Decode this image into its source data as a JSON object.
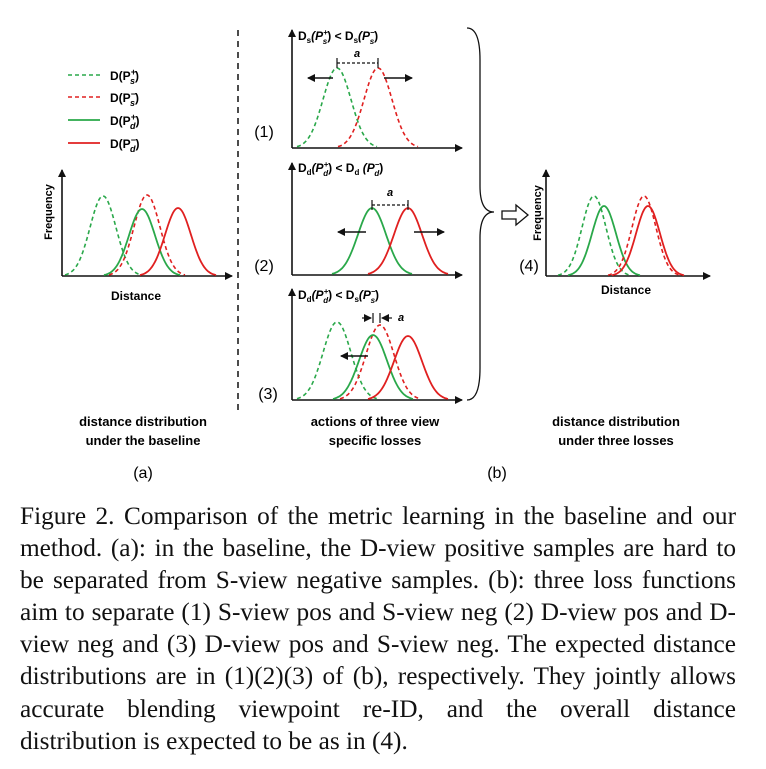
{
  "legend": [
    {
      "text": "D(P",
      "sup": "+",
      "sub": "s",
      "close": ")",
      "color": "#2aa84a",
      "dash": true
    },
    {
      "text": "D(P",
      "sup": "−",
      "sub": "s",
      "close": ")",
      "color": "#e02020",
      "dash": true
    },
    {
      "text": "D(P",
      "sup": "+",
      "sub": "d",
      "close": ")",
      "color": "#2aa84a",
      "dash": false
    },
    {
      "text": "D(P",
      "sup": "−",
      "sub": "d",
      "close": ")",
      "color": "#e02020",
      "dash": false
    }
  ],
  "axes": {
    "frequency": "Frequency",
    "distance": "Distance"
  },
  "panel_b_titles": [
    {
      "num": "(1)",
      "a": "D",
      "as": "s",
      "ap": "+",
      "apsub": "s",
      "b": "D",
      "bs": "s",
      "bp": "−",
      "bpsub": "s"
    },
    {
      "num": "(2)",
      "a": "D",
      "as": "d",
      "ap": "+",
      "apsub": "d",
      "b": "D",
      "bs": "d",
      "bp": "−",
      "bpsub": "d"
    },
    {
      "num": "(3)",
      "a": "D",
      "as": "d",
      "ap": "+",
      "apsub": "d",
      "b": "D",
      "bs": "s",
      "bp": "−",
      "bpsub": "s"
    }
  ],
  "margin_label": "a",
  "panel4_label": "(4)",
  "subtitles": {
    "a_line1": "distance distribution",
    "a_line2": "under the baseline",
    "b_line1": "actions of three view",
    "b_line2": "specific losses",
    "c_line1": "distance distribution",
    "c_line2": "under three losses"
  },
  "sub_labels": {
    "a": "(a)",
    "b": "(b)"
  },
  "caption": "Figure 2. Comparison of the metric learning in the baseline and our method. (a): in the baseline, the D-view positive samples are hard to be separated from S-view negative samples. (b): three loss functions aim to separate (1) S-view pos and S-view neg (2) D-view pos and D-view neg and (3) D-view pos and S-view neg. The expected distance distributions are in (1)(2)(3) of (b), respectively. They jointly allows accurate blending viewpoint re-ID, and the overall distance distribution is expected to be as in (4).",
  "colors": {
    "green": "#2aa84a",
    "red": "#e02020",
    "axis": "#111111"
  }
}
